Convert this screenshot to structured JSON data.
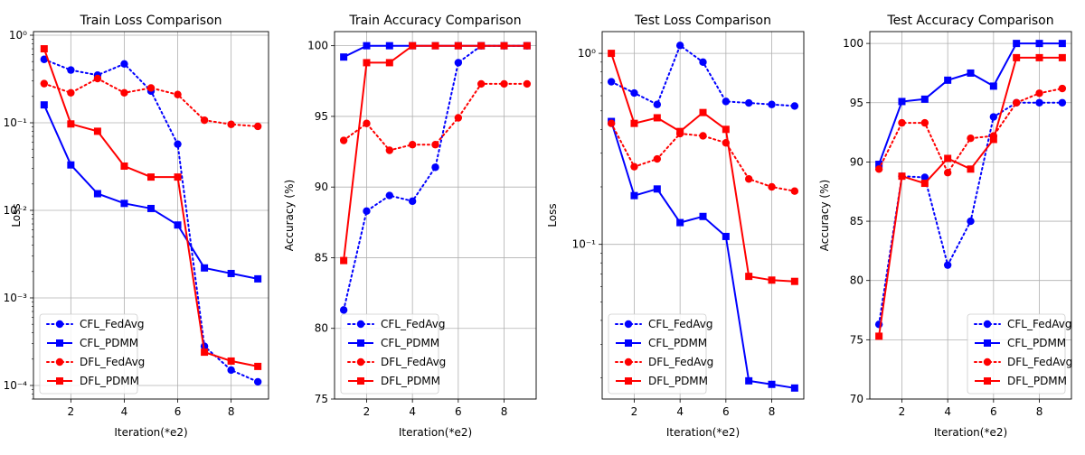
{
  "chart_data": [
    {
      "type": "line",
      "title": "Train Loss Comparison",
      "xlabel": "Iteration(*e2)",
      "ylabel": "Loss",
      "yscale": "log",
      "xlim": [
        0.6,
        9.4
      ],
      "ylim": [
        7e-05,
        1.1
      ],
      "xticks": [
        2,
        4,
        6,
        8
      ],
      "xtick_labels": [
        "2",
        "4",
        "6",
        "8"
      ],
      "yticks": [
        0.0001,
        0.001,
        0.01,
        0.1,
        1
      ],
      "ytick_labels": [
        "10⁻⁴",
        "10⁻³",
        "10⁻²",
        "10⁻¹",
        "10⁰"
      ],
      "grid": true,
      "legend_position": "lower-left",
      "x": [
        1,
        2,
        3,
        4,
        5,
        6,
        7,
        8,
        9
      ],
      "series": [
        {
          "name": "CFL_FedAvg",
          "color": "#0000ff",
          "style": "dotted",
          "marker": "circle",
          "values": [
            0.53,
            0.4,
            0.35,
            0.47,
            0.23,
            0.057,
            0.00028,
            0.00015,
            0.00011
          ]
        },
        {
          "name": "CFL_PDMM",
          "color": "#0000ff",
          "style": "solid",
          "marker": "square",
          "values": [
            0.16,
            0.033,
            0.0155,
            0.012,
            0.0105,
            0.0068,
            0.0022,
            0.0019,
            0.00165
          ]
        },
        {
          "name": "DFL_FedAvg",
          "color": "#ff0000",
          "style": "dotted",
          "marker": "circle",
          "values": [
            0.28,
            0.22,
            0.32,
            0.22,
            0.25,
            0.21,
            0.107,
            0.096,
            0.091
          ]
        },
        {
          "name": "DFL_PDMM",
          "color": "#ff0000",
          "style": "solid",
          "marker": "square",
          "values": [
            0.7,
            0.097,
            0.08,
            0.032,
            0.024,
            0.024,
            0.00024,
            0.00019,
            0.000165
          ]
        }
      ]
    },
    {
      "type": "line",
      "title": "Train Accuracy Comparison",
      "xlabel": "Iteration(*e2)",
      "ylabel": "Accuracy (%)",
      "yscale": "linear",
      "xlim": [
        0.6,
        9.4
      ],
      "ylim": [
        75,
        101
      ],
      "xticks": [
        2,
        4,
        6,
        8
      ],
      "xtick_labels": [
        "2",
        "4",
        "6",
        "8"
      ],
      "yticks": [
        75,
        80,
        85,
        90,
        95,
        100
      ],
      "ytick_labels": [
        "75",
        "80",
        "85",
        "90",
        "95",
        "100"
      ],
      "grid": true,
      "legend_position": "lower-left",
      "x": [
        1,
        2,
        3,
        4,
        5,
        6,
        7,
        8,
        9
      ],
      "series": [
        {
          "name": "CFL_FedAvg",
          "color": "#0000ff",
          "style": "dotted",
          "marker": "circle",
          "values": [
            81.3,
            88.3,
            89.4,
            89.0,
            91.4,
            98.8,
            100,
            100,
            100
          ]
        },
        {
          "name": "CFL_PDMM",
          "color": "#0000ff",
          "style": "solid",
          "marker": "square",
          "values": [
            99.2,
            100,
            100,
            100,
            100,
            100,
            100,
            100,
            100
          ]
        },
        {
          "name": "DFL_FedAvg",
          "color": "#ff0000",
          "style": "dotted",
          "marker": "circle",
          "values": [
            93.3,
            94.5,
            92.6,
            93.0,
            93.0,
            94.9,
            97.3,
            97.3,
            97.3
          ]
        },
        {
          "name": "DFL_PDMM",
          "color": "#ff0000",
          "style": "solid",
          "marker": "square",
          "values": [
            84.8,
            98.8,
            98.8,
            100,
            100,
            100,
            100,
            100,
            100
          ]
        }
      ]
    },
    {
      "type": "line",
      "title": "Test Loss Comparison",
      "xlabel": "Iteration(*e2)",
      "ylabel": "Loss",
      "yscale": "log",
      "xlim": [
        0.6,
        9.4
      ],
      "ylim": [
        0.0155,
        1.3
      ],
      "xticks": [
        2,
        4,
        6,
        8
      ],
      "xtick_labels": [
        "2",
        "4",
        "6",
        "8"
      ],
      "yticks": [
        0.1,
        1
      ],
      "ytick_labels": [
        "10⁻¹",
        "10⁰"
      ],
      "grid": true,
      "legend_position": "lower-left",
      "x": [
        1,
        2,
        3,
        4,
        5,
        6,
        7,
        8,
        9
      ],
      "series": [
        {
          "name": "CFL_FedAvg",
          "color": "#0000ff",
          "style": "dotted",
          "marker": "circle",
          "values": [
            0.71,
            0.62,
            0.54,
            1.1,
            0.9,
            0.56,
            0.55,
            0.54,
            0.53
          ]
        },
        {
          "name": "CFL_PDMM",
          "color": "#0000ff",
          "style": "solid",
          "marker": "square",
          "values": [
            0.44,
            0.18,
            0.195,
            0.13,
            0.14,
            0.11,
            0.0193,
            0.0185,
            0.0177
          ]
        },
        {
          "name": "DFL_FedAvg",
          "color": "#ff0000",
          "style": "dotted",
          "marker": "circle",
          "values": [
            0.43,
            0.255,
            0.28,
            0.38,
            0.37,
            0.34,
            0.22,
            0.2,
            0.19
          ]
        },
        {
          "name": "DFL_PDMM",
          "color": "#ff0000",
          "style": "solid",
          "marker": "square",
          "values": [
            1.0,
            0.43,
            0.46,
            0.39,
            0.49,
            0.4,
            0.068,
            0.065,
            0.064
          ]
        }
      ]
    },
    {
      "type": "line",
      "title": "Test Accuracy Comparison",
      "xlabel": "Iteration(*e2)",
      "ylabel": "Accuracy (%)",
      "yscale": "linear",
      "xlim": [
        0.6,
        9.4
      ],
      "ylim": [
        70,
        101
      ],
      "xticks": [
        2,
        4,
        6,
        8
      ],
      "xtick_labels": [
        "2",
        "4",
        "6",
        "8"
      ],
      "yticks": [
        70,
        75,
        80,
        85,
        90,
        95,
        100
      ],
      "ytick_labels": [
        "70",
        "75",
        "80",
        "85",
        "90",
        "95",
        "100"
      ],
      "grid": true,
      "legend_position": "lower-right",
      "x": [
        1,
        2,
        3,
        4,
        5,
        6,
        7,
        8,
        9
      ],
      "series": [
        {
          "name": "CFL_FedAvg",
          "color": "#0000ff",
          "style": "dotted",
          "marker": "circle",
          "values": [
            76.3,
            88.8,
            88.7,
            81.3,
            85.0,
            93.8,
            95.0,
            95.0,
            95.0
          ]
        },
        {
          "name": "CFL_PDMM",
          "color": "#0000ff",
          "style": "solid",
          "marker": "square",
          "values": [
            89.8,
            95.1,
            95.3,
            96.9,
            97.5,
            96.4,
            100,
            100,
            100
          ]
        },
        {
          "name": "DFL_FedAvg",
          "color": "#ff0000",
          "style": "dotted",
          "marker": "circle",
          "values": [
            89.4,
            93.3,
            93.3,
            89.1,
            92.0,
            92.2,
            95.0,
            95.8,
            96.2
          ]
        },
        {
          "name": "DFL_PDMM",
          "color": "#ff0000",
          "style": "solid",
          "marker": "square",
          "values": [
            75.3,
            88.8,
            88.2,
            90.3,
            89.4,
            91.9,
            98.8,
            98.8,
            98.8
          ]
        }
      ]
    }
  ]
}
